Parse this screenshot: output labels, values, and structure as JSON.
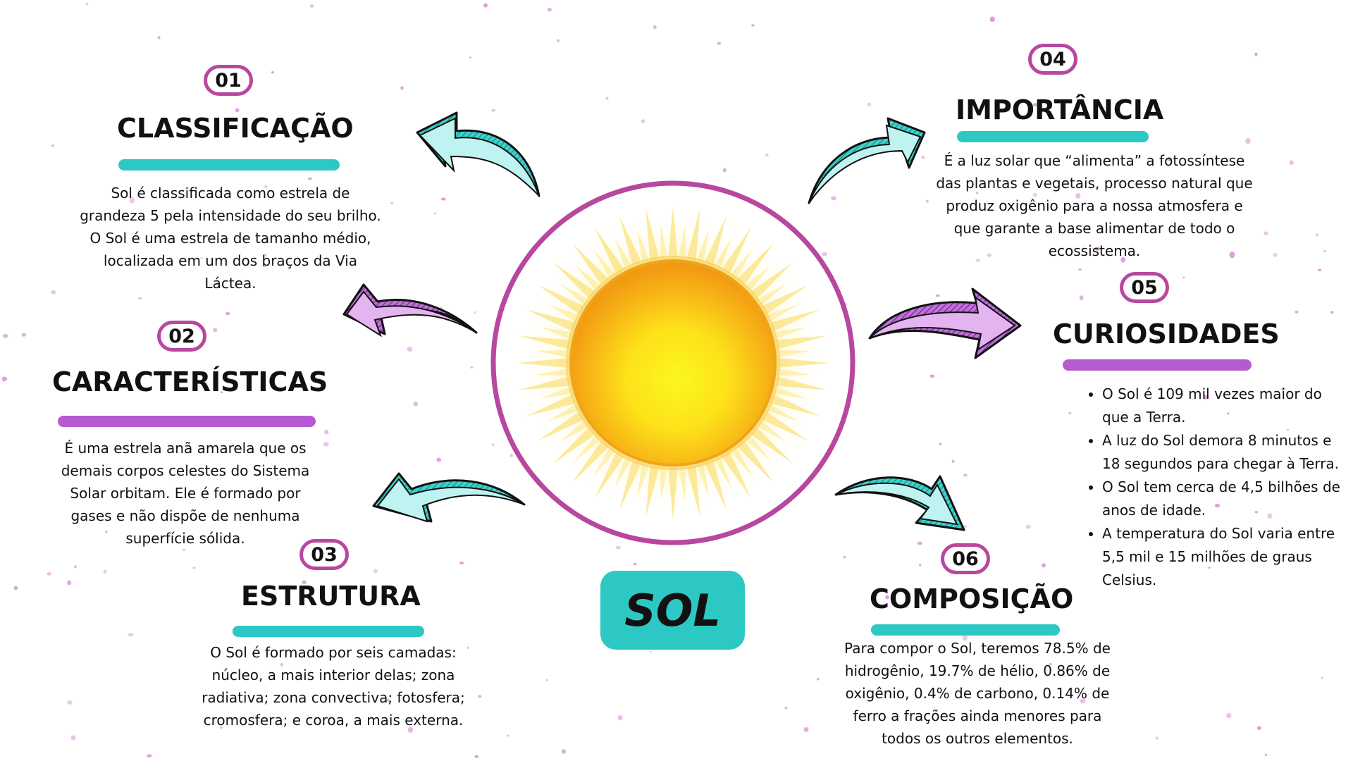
{
  "title": "SOL",
  "colors": {
    "teal": "#2ec8c4",
    "purple": "#b55ad0",
    "ring": "#b8479f"
  },
  "sections": [
    {
      "number": "01",
      "heading": "CLASSIFICAÇÃO",
      "accent": "teal",
      "body": "Sol é classificada como estrela de grandeza 5 pela intensidade do seu brilho. O Sol é uma estrela de tamanho médio, localizada em um dos braços da Via Láctea."
    },
    {
      "number": "02",
      "heading": "CARACTERÍSTICAS",
      "accent": "purple",
      "body": "É uma estrela anã amarela que os demais corpos celestes do Sistema Solar orbitam. Ele é formado por gases e não dispõe de nenhuma superfície sólida."
    },
    {
      "number": "03",
      "heading": "ESTRUTURA",
      "accent": "teal",
      "body": "O Sol é formado por seis camadas: núcleo, a mais interior delas; zona radiativa; zona convectiva; fotosfera; cromosfera; e coroa, a mais externa."
    },
    {
      "number": "04",
      "heading": "IMPORTÂNCIA",
      "accent": "teal",
      "body": "É a luz solar que “alimenta” a fotossíntese das plantas e vegetais, processo natural que produz oxigênio para a nossa atmosfera e que garante a base alimentar de todo o ecossistema."
    },
    {
      "number": "05",
      "heading": "CURIOSIDADES",
      "accent": "purple",
      "bullets": [
        "O Sol é 109 mil vezes maior do que a Terra.",
        "A luz do Sol demora 8 minutos e 18 segundos para chegar à Terra.",
        "O Sol tem cerca de 4,5 bilhões de anos de idade.",
        "A temperatura do Sol varia entre 5,5 mil e 15 milhões de graus Celsius."
      ]
    },
    {
      "number": "06",
      "heading": "COMPOSIÇÃO",
      "accent": "teal",
      "body": "Para compor o Sol, teremos 78.5% de hidrogênio, 19.7% de hélio, 0.86% de oxigênio, 0.4% de carbono, 0.14% de ferro a frações ainda menores para todos os outros elementos."
    }
  ]
}
